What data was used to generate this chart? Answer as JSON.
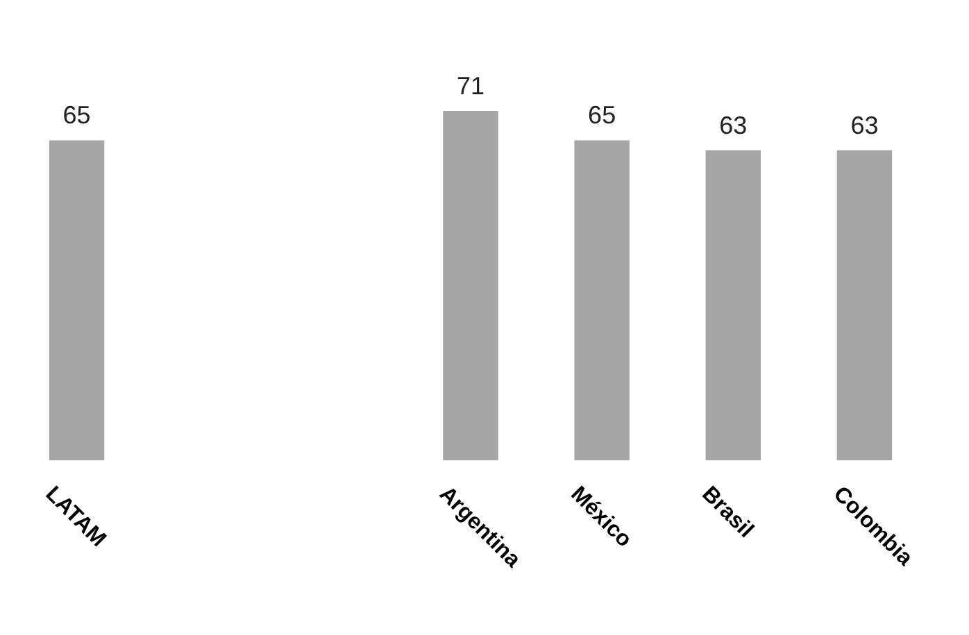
{
  "chart_data": {
    "type": "bar",
    "categories": [
      "LATAM",
      null,
      null,
      "Argentina",
      "México",
      "Brasil",
      "Colombia"
    ],
    "values": [
      65,
      null,
      null,
      71,
      65,
      63,
      63
    ],
    "color": "#a6a6a6",
    "data_labels": true
  }
}
